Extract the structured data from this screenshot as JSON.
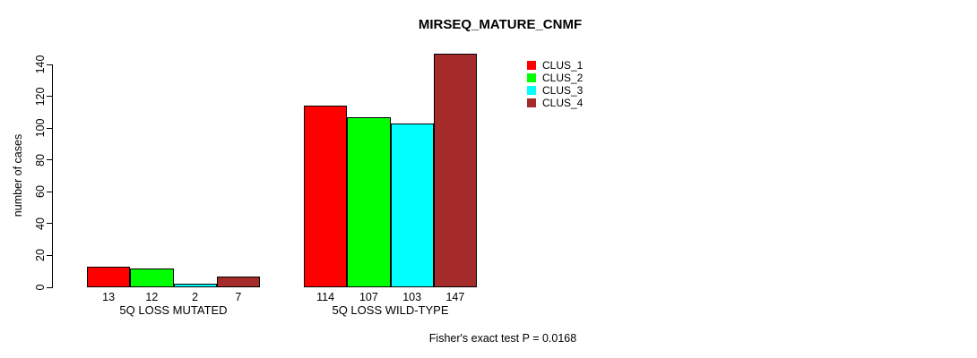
{
  "chart_data": {
    "type": "bar",
    "title": "MIRSEQ_MATURE_CNMF",
    "categories": [
      "5Q LOSS MUTATED",
      "5Q LOSS WILD-TYPE"
    ],
    "series": [
      {
        "name": "CLUS_1",
        "color": "#ff0000",
        "values": [
          13,
          114
        ]
      },
      {
        "name": "CLUS_2",
        "color": "#00ff00",
        "values": [
          12,
          107
        ]
      },
      {
        "name": "CLUS_3",
        "color": "#00ffff",
        "values": [
          2,
          103
        ]
      },
      {
        "name": "CLUS_4",
        "color": "#a52a2a",
        "values": [
          7,
          147
        ]
      }
    ],
    "xlabel": "",
    "ylabel": "number of cases",
    "ylim": [
      0,
      140
    ],
    "yticks": [
      0,
      20,
      40,
      60,
      80,
      100,
      120,
      140
    ],
    "show_bar_values": true,
    "legend_position": "top-right",
    "grid": false,
    "annotation": "Fisher's exact test P = 0.0168"
  }
}
